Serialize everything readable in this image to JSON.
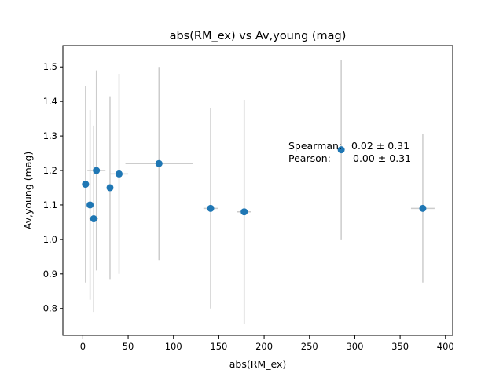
{
  "chart_data": {
    "type": "scatter",
    "title": "abs(RM_ex) vs Av,young (mag)",
    "xlabel": "abs(RM_ex)",
    "ylabel": "Av,young (mag)",
    "xlim": [
      -22,
      408
    ],
    "ylim": [
      0.722,
      1.562
    ],
    "xticks": [
      0,
      50,
      100,
      150,
      200,
      250,
      300,
      350,
      400
    ],
    "yticks": [
      0.8,
      0.9,
      1.0,
      1.1,
      1.2,
      1.3,
      1.4,
      1.5
    ],
    "xtick_labels": [
      "0",
      "50",
      "100",
      "150",
      "200",
      "250",
      "300",
      "350",
      "400"
    ],
    "ytick_labels": [
      "0.8",
      "0.9",
      "1.0",
      "1.1",
      "1.2",
      "1.3",
      "1.4",
      "1.5"
    ],
    "grid": false,
    "marker_color": "#1f77b4",
    "errorbar_color": "#cccccc",
    "points": [
      {
        "x": 3,
        "y": 1.16,
        "xerr": 1,
        "yerr": 0.285
      },
      {
        "x": 8,
        "y": 1.1,
        "xerr": 2,
        "yerr": 0.275
      },
      {
        "x": 12,
        "y": 1.06,
        "xerr": 5,
        "yerr": 0.27
      },
      {
        "x": 15,
        "y": 1.2,
        "xerr": 10,
        "yerr": 0.29
      },
      {
        "x": 30,
        "y": 1.15,
        "xerr": 2,
        "yerr": 0.265
      },
      {
        "x": 40,
        "y": 1.19,
        "xerr": 10,
        "yerr": 0.29
      },
      {
        "x": 84,
        "y": 1.22,
        "xerr": 37,
        "yerr": 0.28
      },
      {
        "x": 141,
        "y": 1.09,
        "xerr": 8,
        "yerr": 0.29
      },
      {
        "x": 178,
        "y": 1.08,
        "xerr": 8,
        "yerr": 0.325
      },
      {
        "x": 285,
        "y": 1.26,
        "xerr": 1,
        "yerr": 0.26
      },
      {
        "x": 375,
        "y": 1.09,
        "xerr": 13,
        "yerr": 0.215
      }
    ],
    "annotations": {
      "spearman_label": "Spearman:",
      "spearman_value": "0.02 ± 0.31",
      "pearson_label": "Pearson:",
      "pearson_value": "0.00 ± 0.31"
    }
  }
}
